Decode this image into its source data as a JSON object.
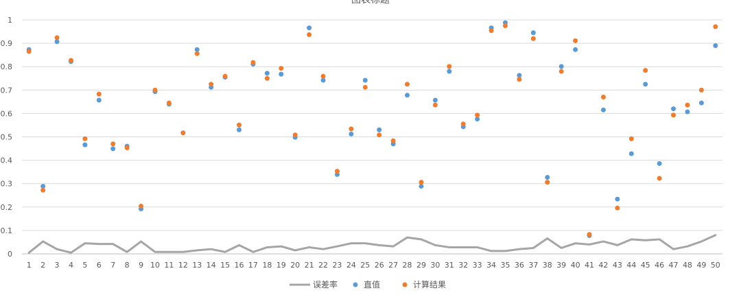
{
  "chart_data": {
    "type": "scatter",
    "title": "图表标题",
    "xlabel": "",
    "ylabel": "",
    "x": [
      1,
      2,
      3,
      4,
      5,
      6,
      7,
      8,
      9,
      10,
      11,
      12,
      13,
      14,
      15,
      16,
      17,
      18,
      19,
      20,
      21,
      22,
      23,
      24,
      25,
      26,
      27,
      28,
      29,
      30,
      31,
      32,
      33,
      34,
      35,
      36,
      37,
      38,
      39,
      40,
      41,
      42,
      43,
      44,
      45,
      46,
      47,
      48,
      49,
      50
    ],
    "ylim": [
      0,
      1
    ],
    "yticks": [
      "0",
      "0.1",
      "0.2",
      "0.3",
      "0.4",
      "0.5",
      "0.6",
      "0.7",
      "0.8",
      "0.9",
      "1"
    ],
    "grid": true,
    "legend_position": "bottom",
    "series": [
      {
        "name": "误差率",
        "type": "line",
        "color": "#a5a5a5",
        "values": [
          0.005,
          0.053,
          0.02,
          0.005,
          0.045,
          0.042,
          0.042,
          0.008,
          0.053,
          0.008,
          0.008,
          0.008,
          0.015,
          0.02,
          0.008,
          0.037,
          0.008,
          0.028,
          0.032,
          0.015,
          0.028,
          0.02,
          0.032,
          0.045,
          0.045,
          0.037,
          0.032,
          0.07,
          0.062,
          0.037,
          0.028,
          0.028,
          0.028,
          0.012,
          0.012,
          0.02,
          0.025,
          0.066,
          0.025,
          0.045,
          0.04,
          0.053,
          0.037,
          0.062,
          0.058,
          0.062,
          0.02,
          0.032,
          0.053,
          0.08
        ]
      },
      {
        "name": "直值",
        "type": "scatter",
        "color": "#5b9bd5",
        "values": [
          0.873,
          0.289,
          0.907,
          0.822,
          0.466,
          0.657,
          0.449,
          0.46,
          0.192,
          0.693,
          0.64,
          0.517,
          0.873,
          0.712,
          0.755,
          0.53,
          0.811,
          0.772,
          0.768,
          0.498,
          0.966,
          0.742,
          0.339,
          0.512,
          0.742,
          0.53,
          0.47,
          0.678,
          0.289,
          0.657,
          0.78,
          0.543,
          0.576,
          0.966,
          0.988,
          0.763,
          0.945,
          0.327,
          0.801,
          0.873,
          0.078,
          0.615,
          0.234,
          0.428,
          0.725,
          0.386,
          0.62,
          0.607,
          0.645,
          0.89
        ]
      },
      {
        "name": "计算结果",
        "type": "scatter",
        "color": "#ed7d31",
        "values": [
          0.865,
          0.272,
          0.924,
          0.827,
          0.492,
          0.683,
          0.47,
          0.453,
          0.204,
          0.7,
          0.645,
          0.517,
          0.856,
          0.725,
          0.759,
          0.551,
          0.818,
          0.75,
          0.793,
          0.508,
          0.937,
          0.759,
          0.353,
          0.534,
          0.712,
          0.508,
          0.483,
          0.725,
          0.306,
          0.636,
          0.801,
          0.555,
          0.593,
          0.954,
          0.975,
          0.746,
          0.92,
          0.306,
          0.78,
          0.911,
          0.083,
          0.67,
          0.196,
          0.492,
          0.784,
          0.323,
          0.593,
          0.636,
          0.7,
          0.971
        ]
      }
    ]
  }
}
